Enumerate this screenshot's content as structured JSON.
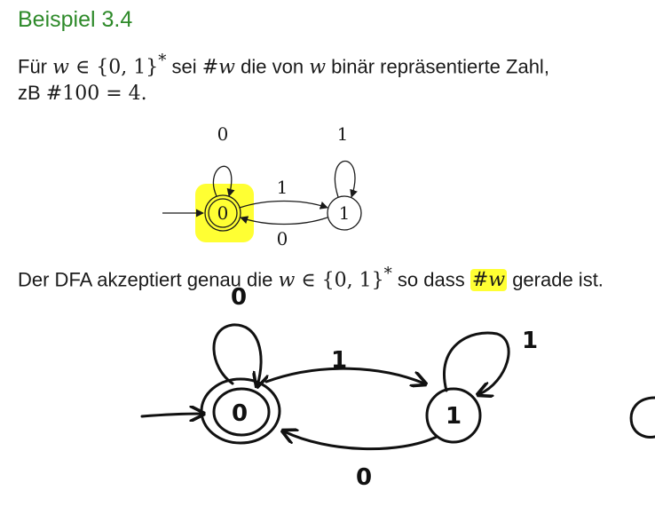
{
  "slide": {
    "title": "Beispiel 3.4",
    "line1": {
      "t1": "Für ",
      "m1": "w",
      "m2": " ∈ {0, 1}",
      "sup": "*",
      "t2": " sei ",
      "m3": "#w",
      "t3": " die von ",
      "m4": "w",
      "t4": " binär repräsentierte Zahl,"
    },
    "line2": {
      "t1": "zB ",
      "m1": "#100 = 4."
    },
    "line3": {
      "t1": "Der DFA akzeptiert genau die ",
      "m1": "w",
      "m2": " ∈ {0, 1}",
      "sup": "*",
      "t2": " so dass ",
      "m3": "#w",
      "t3": " gerade ist."
    }
  },
  "printed_dfa": {
    "state_q0": "0",
    "state_q1": "1",
    "loop_q0_label": "0",
    "loop_q1_label": "1",
    "edge_q0_q1_label": "1",
    "edge_q1_q0_label": "0",
    "highlight_color": "#ffff33"
  },
  "handwritten_dfa": {
    "state_q0": "0",
    "state_q1": "1",
    "loop_q0_label": "0",
    "loop_q1_label": "1",
    "edge_q0_q1_label": "1",
    "edge_q1_q0_label": "0"
  },
  "colors": {
    "title": "#2e8a2a",
    "highlight": "#ffff33"
  }
}
